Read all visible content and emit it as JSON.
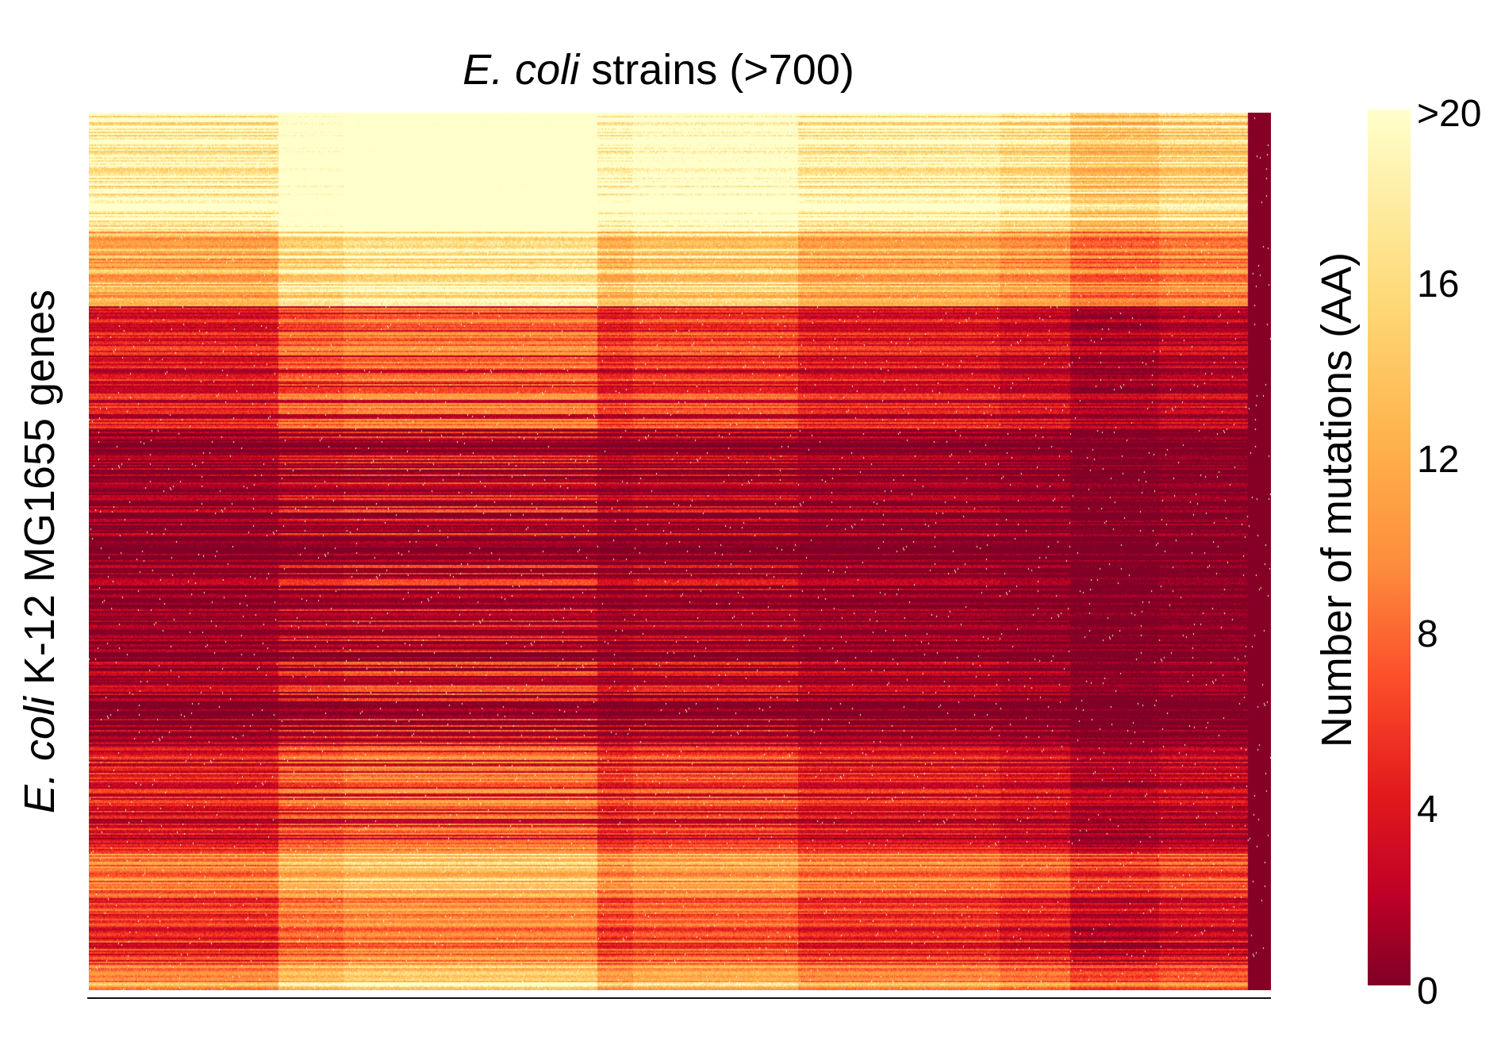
{
  "chart_data": {
    "type": "heatmap",
    "title_italic": "E. coli",
    "title_rest": " strains (>700)",
    "ylabel_italic": "E. coli",
    "ylabel_rest": " K-12 MG1655 genes",
    "colorbar_label": "Number of mutations  (AA)",
    "colorbar_ticks": [
      "0",
      "4",
      "8",
      "12",
      "16",
      ">20"
    ],
    "colorbar_tick_values": [
      0,
      4,
      8,
      12,
      16,
      20
    ],
    "value_range": [
      0,
      20
    ],
    "colormap": [
      "#800026",
      "#bd0026",
      "#e31a1c",
      "#fc4e2a",
      "#fd8d3c",
      "#feb24c",
      "#fed976",
      "#ffffcc"
    ],
    "gene_block_mean_values": [
      20,
      14,
      5,
      1,
      0,
      2,
      5,
      11,
      7,
      13
    ],
    "strain_group_offsets": [
      0,
      3,
      4,
      1,
      2,
      0,
      -1,
      -3,
      -2,
      1
    ],
    "legend": "colorbar-right",
    "grid": false
  }
}
